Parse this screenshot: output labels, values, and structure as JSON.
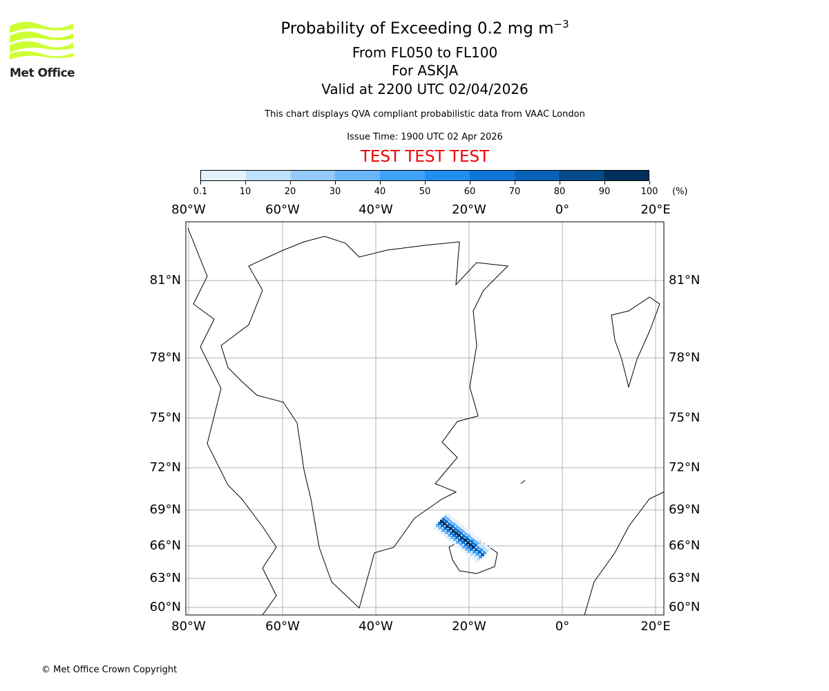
{
  "logo": {
    "text": "Met Office",
    "color": "#ccff33"
  },
  "header": {
    "title": "Probability of Exceeding 0.2 mg m",
    "title_sup": "−3",
    "line2": "From FL050 to FL100",
    "line3": "For ASKJA",
    "line4": "Valid at 2200 UTC 02/04/2026",
    "note": "This chart displays QVA compliant probabilistic data from VAAC London",
    "issue": "Issue Time: 1900 UTC 02 Apr 2026",
    "test": "TEST TEST TEST",
    "test_color": "#ee0000"
  },
  "colorbar": {
    "ticks": [
      "0.1",
      "10",
      "20",
      "30",
      "40",
      "50",
      "60",
      "70",
      "80",
      "90",
      "100"
    ],
    "unit": "(%)",
    "colors": [
      "#e3f1fd",
      "#bde0fb",
      "#94c9fa",
      "#6bb5f9",
      "#3fa1f8",
      "#1e8fef",
      "#0d76d8",
      "#0562b8",
      "#034b8a",
      "#01305c"
    ]
  },
  "map": {
    "lon_labels": [
      "80°W",
      "60°W",
      "40°W",
      "20°W",
      "0°",
      "20°E"
    ],
    "lat_labels": [
      "81°N",
      "78°N",
      "75°N",
      "72°N",
      "69°N",
      "66°N",
      "63°N",
      "60°N"
    ]
  },
  "footer": {
    "copyright": "© Met Office Crown Copyright"
  }
}
